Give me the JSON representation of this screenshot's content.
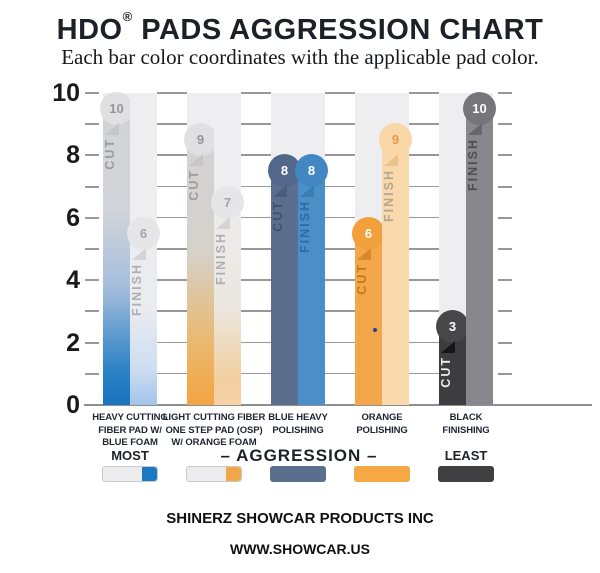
{
  "header": {
    "title_pre": "HDO",
    "title_reg": "®",
    "title_post": " PADS AGGRESSION CHART",
    "subtitle": "Each bar color coordinates with the applicable pad color."
  },
  "chart_data": {
    "type": "bar",
    "title": "HDO® PADS AGGRESSION CHART",
    "subtitle": "Each bar color coordinates with the applicable pad color.",
    "categories": [
      "HEAVY CUTTING FIBER PAD W/ BLUE FOAM",
      "LIGHT CUTTING FIBER ONE STEP PAD (OSP) W/ ORANGE FOAM",
      "BLUE HEAVY POLISHING",
      "ORANGE POLISHING",
      "BLACK FINISHING"
    ],
    "series": [
      {
        "name": "CUT",
        "values": [
          10,
          9,
          8,
          6,
          3
        ]
      },
      {
        "name": "FINISH",
        "values": [
          6,
          7,
          8,
          9,
          10
        ]
      }
    ],
    "ylim": [
      0,
      10
    ],
    "yticks_labeled": [
      0,
      2,
      4,
      6,
      8,
      10
    ],
    "yticks_minor": [
      1,
      3,
      5,
      7,
      9
    ],
    "grid": "horizontal gridlines drawn in white gap columns between bar groups; tick dashes on left and right edges",
    "legend_position": "bottom"
  },
  "groups": [
    {
      "label_lines": [
        "HEAVY CUTTING",
        "FIBER PAD W/",
        "BLUE FOAM"
      ],
      "bars": [
        {
          "series": "CUT",
          "value": 10,
          "fill": "linear-gradient(180deg,#d3d3d5 0%,#d1d4d9 38%,#a6bedc 62%,#2f83c6 88%,#1973bd 100%)",
          "cap": "#e0e0e2",
          "cap_text": "#96969a",
          "fold": "#c6c6c8",
          "label_color": "#9b9b9f"
        },
        {
          "series": "FINISH",
          "value": 6,
          "fill": "linear-gradient(180deg,#ededef 0%,#eaecf0 48%,#cedef2 80%,#a3c4ea 100%)",
          "cap": "#e6e6e8",
          "cap_text": "#a3a3a7",
          "fold": "#d4d4d6",
          "label_color": "#aeaeb2"
        }
      ],
      "swatch": {
        "body": "#ececee",
        "border": "#c9c9cb",
        "tip": "#1a78c4"
      }
    },
    {
      "label_lines": [
        "LIGHT CUTTING FIBER",
        "ONE STEP PAD (OSP)",
        "W/ ORANGE FOAM"
      ],
      "bars": [
        {
          "series": "CUT",
          "value": 9,
          "fill": "linear-gradient(180deg,#d3d3d5 0%,#d5d2cc 45%,#eab86e 78%,#f3a443 100%)",
          "cap": "#e0e0e2",
          "cap_text": "#96969a",
          "fold": "#c6c6c8",
          "label_color": "#9b9b9f"
        },
        {
          "series": "FINISH",
          "value": 7,
          "fill": "linear-gradient(180deg,#ededef 0%,#ebe7e0 55%,#f2cfa0 88%,#f7d3a4 100%)",
          "cap": "#e6e6e8",
          "cap_text": "#a3a3a7",
          "fold": "#d4d4d6",
          "label_color": "#aeaeb2"
        }
      ],
      "swatch": {
        "body": "#ececee",
        "border": "#c9c9cb",
        "tip": "#f2a648"
      }
    },
    {
      "label_lines": [
        "BLUE HEAVY",
        "POLISHING"
      ],
      "bars": [
        {
          "series": "CUT",
          "value": 8,
          "fill": "#5a6e8e",
          "cap": "#53678a",
          "cap_text": "#ffffff",
          "fold": "#495d80",
          "label_color": "#3c5170"
        },
        {
          "series": "FINISH",
          "value": 8,
          "fill": "#4a8fc8",
          "cap": "#4287c1",
          "cap_text": "#ffffff",
          "fold": "#3a7db4",
          "label_color": "#2e6ba1"
        }
      ],
      "swatch": {
        "body": "#5a6e8e",
        "border": "#5a6e8e",
        "tip": null
      }
    },
    {
      "label_lines": [
        "ORANGE",
        "POLISHING"
      ],
      "bars": [
        {
          "series": "CUT",
          "value": 6,
          "fill": "#f4a74a",
          "cap": "#f1a03b",
          "cap_text": "#ffffff",
          "fold": "#d8882c",
          "label_color": "#bf7a1e"
        },
        {
          "series": "FINISH",
          "value": 9,
          "fill": "#f9d9ac",
          "cap": "#f8d6a6",
          "cap_text": "#e29a44",
          "fold": "#ecc28b",
          "label_color": "#b5a592"
        }
      ],
      "swatch": {
        "body": "#f5a843",
        "border": "#f5a843",
        "tip": null
      }
    },
    {
      "label_lines": [
        "BLACK",
        "FINISHING"
      ],
      "bars": [
        {
          "series": "CUT",
          "value": 3,
          "fill": "#3d3d40",
          "cap": "#47474a",
          "cap_text": "#ffffff",
          "fold": "#161618",
          "label_color": "#ececee"
        },
        {
          "series": "FINISH",
          "value": 10,
          "fill": "#88888c",
          "cap": "#76767a",
          "cap_text": "#ffffff",
          "fold": "#68686c",
          "label_color": "#4d4d52"
        }
      ],
      "swatch": {
        "body": "#403f42",
        "border": "#403f42",
        "tip": null
      }
    }
  ],
  "legend": {
    "most": "MOST",
    "aggression": "– AGGRESSION –",
    "least": "LEAST"
  },
  "footer": {
    "line1": "SHINERZ SHOWCAR PRODUCTS INC",
    "line2": "WWW.SHOWCAR.US"
  }
}
